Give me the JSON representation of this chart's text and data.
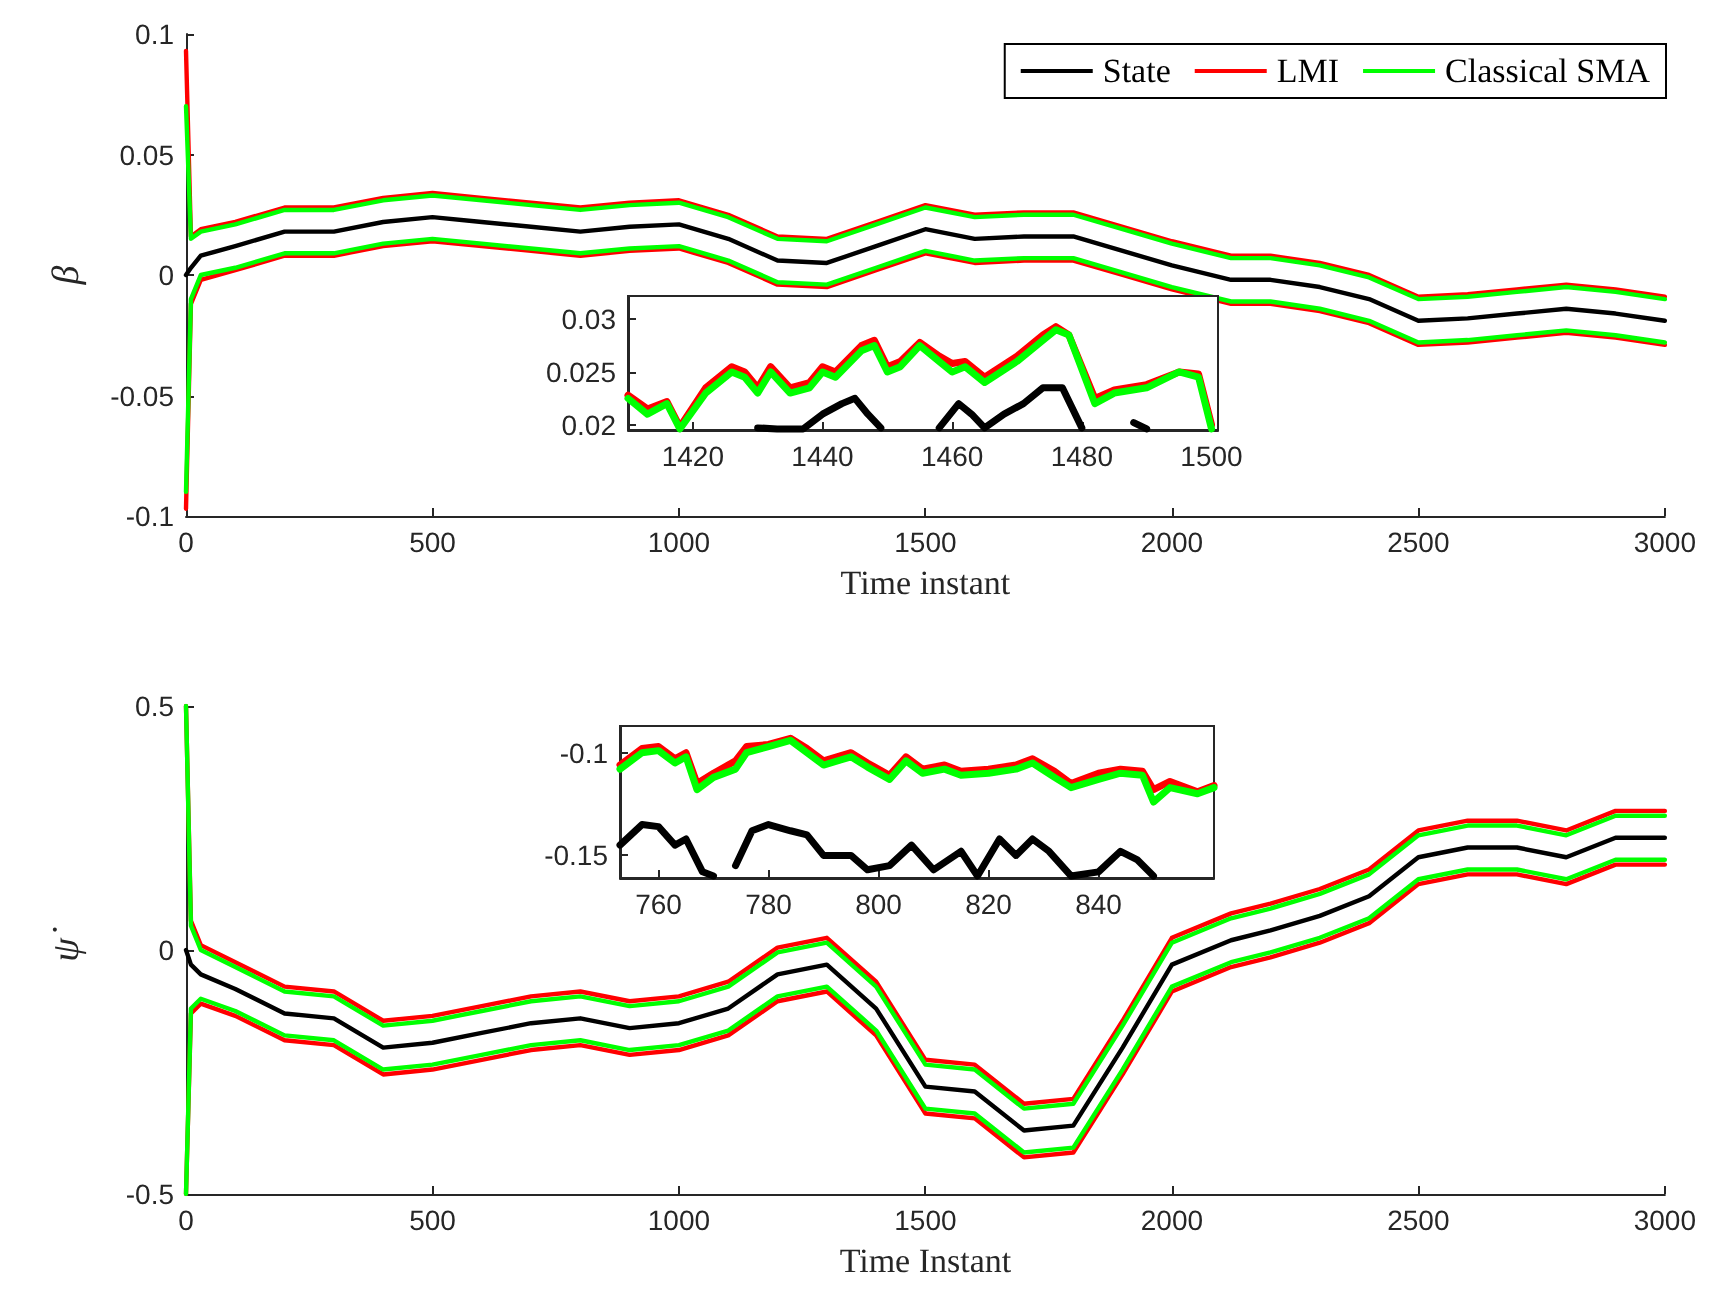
{
  "chart_data": [
    {
      "type": "line",
      "xlabel": "Time instant",
      "ylabel": "β",
      "xlim": [
        0,
        3000
      ],
      "ylim": [
        -0.1,
        0.1
      ],
      "xticks": [
        0,
        500,
        1000,
        1500,
        2000,
        2500,
        3000
      ],
      "yticks": [
        -0.1,
        -0.05,
        0,
        0.05,
        0.1
      ],
      "grid": false,
      "legend": "top right",
      "marker": "none",
      "line_style": "solid",
      "x": [
        0,
        10,
        30,
        100,
        200,
        300,
        400,
        500,
        600,
        700,
        800,
        900,
        1000,
        1100,
        1200,
        1300,
        1400,
        1500,
        1600,
        1700,
        1800,
        1900,
        2000,
        2120,
        2200,
        2300,
        2400,
        2500,
        2600,
        2700,
        2800,
        2900,
        3000
      ],
      "series": [
        {
          "name": "State",
          "color": "#000000",
          "values": [
            0,
            0.003,
            0.008,
            0.012,
            0.018,
            0.018,
            0.022,
            0.024,
            0.022,
            0.02,
            0.018,
            0.02,
            0.021,
            0.015,
            0.006,
            0.005,
            0.012,
            0.019,
            0.015,
            0.016,
            0.016,
            0.01,
            0.004,
            -0.002,
            -0.002,
            -0.005,
            -0.01,
            -0.019,
            -0.018,
            -0.016,
            -0.014,
            -0.016,
            -0.019
          ]
        },
        {
          "name": "LMI",
          "color": "#ff0000",
          "values": [
            0.093,
            0.016,
            0.019,
            0.022,
            0.028,
            0.028,
            0.032,
            0.034,
            0.032,
            0.03,
            0.028,
            0.03,
            0.031,
            0.025,
            0.016,
            0.015,
            0.022,
            0.029,
            0.025,
            0.026,
            0.026,
            0.02,
            0.014,
            0.008,
            0.008,
            0.005,
            0,
            -0.009,
            -0.008,
            -0.006,
            -0.004,
            -0.006,
            -0.009
          ]
        },
        {
          "color": "#ff0000",
          "values": [
            -0.097,
            -0.012,
            -0.002,
            0.002,
            0.008,
            0.008,
            0.012,
            0.014,
            0.012,
            0.01,
            0.008,
            0.01,
            0.011,
            0.005,
            -0.004,
            -0.005,
            0.002,
            0.009,
            0.005,
            0.006,
            0.006,
            0,
            -0.006,
            -0.012,
            -0.012,
            -0.015,
            -0.02,
            -0.029,
            -0.028,
            -0.026,
            -0.024,
            -0.026,
            -0.029
          ]
        },
        {
          "name": "Classical SMA",
          "color": "#00ff00",
          "values": [
            0.07,
            0.015,
            0.018,
            0.021,
            0.027,
            0.027,
            0.031,
            0.033,
            0.031,
            0.029,
            0.027,
            0.029,
            0.03,
            0.024,
            0.015,
            0.014,
            0.021,
            0.028,
            0.024,
            0.025,
            0.025,
            0.019,
            0.013,
            0.007,
            0.007,
            0.004,
            -0.001,
            -0.01,
            -0.009,
            -0.007,
            -0.005,
            -0.007,
            -0.01
          ]
        },
        {
          "color": "#00ff00",
          "values": [
            -0.09,
            -0.01,
            0,
            0.003,
            0.009,
            0.009,
            0.013,
            0.015,
            0.013,
            0.011,
            0.009,
            0.011,
            0.012,
            0.006,
            -0.003,
            -0.004,
            0.003,
            0.01,
            0.006,
            0.007,
            0.007,
            0.001,
            -0.005,
            -0.011,
            -0.011,
            -0.014,
            -0.019,
            -0.028,
            -0.027,
            -0.025,
            -0.023,
            -0.025,
            -0.028
          ]
        }
      ]
    },
    {
      "type": "line",
      "xlim": [
        1410,
        1501
      ],
      "ylim": [
        0.0195,
        0.0322
      ],
      "xticks": [
        1420,
        1440,
        1460,
        1480,
        1500
      ],
      "yticks": [
        0.02,
        0.025,
        0.03
      ],
      "grid": false,
      "legend": false,
      "marker": "none",
      "line_style": "solid",
      "series": [
        {
          "color": "#000000",
          "x": [
            1430,
            1433,
            1437,
            1440,
            1443,
            1445,
            1447,
            1449,
            1452,
            1458,
            1461,
            1463,
            1465,
            1468,
            1471,
            1474,
            1477,
            1480,
            1485,
            1488,
            1490
          ],
          "values": [
            0.0197,
            0.0196,
            0.0196,
            0.021,
            0.022,
            0.0225,
            0.021,
            0.0197,
            null,
            0.0197,
            0.022,
            0.021,
            0.0197,
            0.021,
            0.022,
            0.0235,
            0.0235,
            0.0197,
            null,
            0.0202,
            0.0196
          ]
        },
        {
          "color": "#ff0000",
          "x": [
            1410,
            1413,
            1416,
            1418,
            1422,
            1426,
            1428,
            1430,
            1432,
            1435,
            1438,
            1440,
            1442,
            1446,
            1448,
            1450,
            1452,
            1455,
            1458,
            1460,
            1462,
            1465,
            1470,
            1474,
            1476,
            1478,
            1482,
            1485,
            1490,
            1495,
            1498,
            1500
          ],
          "values": [
            0.0228,
            0.0215,
            0.0222,
            0.0198,
            0.0235,
            0.0255,
            0.025,
            0.0235,
            0.0255,
            0.0235,
            0.024,
            0.0255,
            0.025,
            0.0275,
            0.028,
            0.0255,
            0.026,
            0.0278,
            0.0265,
            0.0258,
            0.026,
            0.0245,
            0.0265,
            0.0285,
            0.0293,
            0.0285,
            0.0225,
            0.0233,
            0.0238,
            0.025,
            0.0248,
            0.02
          ]
        },
        {
          "color": "#00ff00",
          "x": [
            1410,
            1413,
            1416,
            1418,
            1422,
            1426,
            1428,
            1430,
            1432,
            1435,
            1438,
            1440,
            1442,
            1446,
            1448,
            1450,
            1452,
            1455,
            1458,
            1460,
            1462,
            1465,
            1470,
            1474,
            1476,
            1478,
            1482,
            1485,
            1490,
            1495,
            1498,
            1500
          ],
          "values": [
            0.0225,
            0.021,
            0.022,
            0.0196,
            0.023,
            0.025,
            0.0245,
            0.023,
            0.025,
            0.023,
            0.0235,
            0.025,
            0.0245,
            0.027,
            0.0275,
            0.025,
            0.0255,
            0.0275,
            0.026,
            0.025,
            0.0255,
            0.024,
            0.026,
            0.028,
            0.029,
            0.0285,
            0.022,
            0.023,
            0.0235,
            0.025,
            0.0245,
            0.0196
          ]
        }
      ]
    },
    {
      "type": "line",
      "xlabel": "Time Instant",
      "ylabel": "ψ̇",
      "xlim": [
        0,
        3000
      ],
      "ylim": [
        -0.5,
        0.5
      ],
      "xticks": [
        0,
        500,
        1000,
        1500,
        2000,
        2500,
        3000
      ],
      "yticks": [
        -0.5,
        0,
        0.5
      ],
      "grid": false,
      "legend": false,
      "marker": "none",
      "line_style": "solid",
      "x": [
        0,
        10,
        30,
        100,
        200,
        300,
        400,
        500,
        600,
        700,
        800,
        900,
        1000,
        1100,
        1200,
        1300,
        1400,
        1500,
        1600,
        1700,
        1800,
        1900,
        2000,
        2120,
        2200,
        2300,
        2400,
        2500,
        2600,
        2700,
        2800,
        2900,
        3000
      ],
      "series": [
        {
          "color": "#000000",
          "values": [
            0,
            -0.03,
            -0.05,
            -0.08,
            -0.13,
            -0.14,
            -0.2,
            -0.19,
            -0.17,
            -0.15,
            -0.14,
            -0.16,
            -0.15,
            -0.12,
            -0.05,
            -0.03,
            -0.12,
            -0.28,
            -0.29,
            -0.37,
            -0.36,
            -0.2,
            -0.03,
            0.02,
            0.04,
            0.07,
            0.11,
            0.19,
            0.21,
            0.21,
            0.19,
            0.23,
            0.23
          ]
        },
        {
          "color": "#ff0000",
          "values": [
            0.5,
            0.06,
            0.01,
            -0.025,
            -0.075,
            -0.085,
            -0.145,
            -0.135,
            -0.115,
            -0.095,
            -0.085,
            -0.105,
            -0.095,
            -0.065,
            0.005,
            0.025,
            -0.065,
            -0.225,
            -0.235,
            -0.315,
            -0.305,
            -0.145,
            0.025,
            0.075,
            0.095,
            0.125,
            0.165,
            0.245,
            0.265,
            0.265,
            0.245,
            0.285,
            0.285
          ]
        },
        {
          "color": "#ff0000",
          "values": [
            -0.5,
            -0.13,
            -0.11,
            -0.135,
            -0.185,
            -0.195,
            -0.255,
            -0.245,
            -0.225,
            -0.205,
            -0.195,
            -0.215,
            -0.205,
            -0.175,
            -0.105,
            -0.085,
            -0.175,
            -0.335,
            -0.345,
            -0.425,
            -0.415,
            -0.255,
            -0.085,
            -0.035,
            -0.015,
            0.015,
            0.055,
            0.135,
            0.155,
            0.155,
            0.135,
            0.175,
            0.175
          ]
        },
        {
          "color": "#00ff00",
          "values": [
            0.5,
            0.05,
            0,
            -0.035,
            -0.085,
            -0.095,
            -0.155,
            -0.145,
            -0.125,
            -0.105,
            -0.095,
            -0.115,
            -0.105,
            -0.075,
            -0.005,
            0.015,
            -0.075,
            -0.235,
            -0.245,
            -0.325,
            -0.315,
            -0.155,
            0.015,
            0.065,
            0.085,
            0.115,
            0.155,
            0.235,
            0.255,
            0.255,
            0.235,
            0.275,
            0.275
          ]
        },
        {
          "color": "#00ff00",
          "values": [
            -0.5,
            -0.12,
            -0.1,
            -0.125,
            -0.175,
            -0.185,
            -0.245,
            -0.235,
            -0.215,
            -0.195,
            -0.185,
            -0.205,
            -0.195,
            -0.165,
            -0.095,
            -0.075,
            -0.165,
            -0.325,
            -0.335,
            -0.415,
            -0.405,
            -0.245,
            -0.075,
            -0.025,
            -0.005,
            0.025,
            0.065,
            0.145,
            0.165,
            0.165,
            0.145,
            0.185,
            0.185
          ]
        }
      ]
    },
    {
      "type": "line",
      "xlim": [
        753,
        861
      ],
      "ylim": [
        -0.161,
        -0.087
      ],
      "xticks": [
        760,
        780,
        800,
        820,
        840
      ],
      "yticks": [
        -0.15,
        -0.1
      ],
      "grid": false,
      "legend": false,
      "marker": "none",
      "line_style": "solid",
      "series": [
        {
          "color": "#000000",
          "x": [
            753,
            757,
            760,
            763,
            765,
            768,
            770,
            772,
            774,
            777,
            780,
            784,
            787,
            790,
            795,
            798,
            802,
            806,
            810,
            815,
            818,
            822,
            825,
            828,
            831,
            835,
            840,
            844,
            847,
            850
          ],
          "values": [
            -0.145,
            -0.135,
            -0.136,
            -0.145,
            -0.142,
            -0.158,
            -0.16,
            null,
            -0.155,
            -0.138,
            -0.135,
            -0.138,
            -0.14,
            -0.15,
            -0.15,
            -0.157,
            -0.155,
            -0.145,
            -0.157,
            -0.148,
            -0.16,
            -0.142,
            -0.15,
            -0.142,
            -0.148,
            -0.16,
            -0.158,
            -0.148,
            -0.152,
            -0.16
          ]
        },
        {
          "color": "#ff0000",
          "x": [
            753,
            757,
            760,
            763,
            765,
            767,
            770,
            774,
            776,
            780,
            784,
            787,
            790,
            795,
            798,
            802,
            805,
            808,
            812,
            815,
            820,
            825,
            828,
            832,
            835,
            840,
            844,
            848,
            850,
            853,
            858,
            861
          ],
          "values": [
            -0.106,
            -0.098,
            -0.097,
            -0.103,
            -0.1,
            -0.115,
            -0.11,
            -0.104,
            -0.097,
            -0.096,
            -0.093,
            -0.098,
            -0.104,
            -0.1,
            -0.105,
            -0.111,
            -0.102,
            -0.108,
            -0.106,
            -0.109,
            -0.108,
            -0.106,
            -0.103,
            -0.109,
            -0.115,
            -0.11,
            -0.108,
            -0.109,
            -0.118,
            -0.114,
            -0.119,
            -0.116
          ]
        },
        {
          "color": "#00ff00",
          "x": [
            753,
            757,
            760,
            763,
            765,
            767,
            770,
            774,
            776,
            780,
            784,
            787,
            790,
            795,
            798,
            802,
            805,
            808,
            812,
            815,
            820,
            825,
            828,
            832,
            835,
            840,
            844,
            848,
            850,
            853,
            858,
            861
          ],
          "values": [
            -0.108,
            -0.1,
            -0.099,
            -0.105,
            -0.102,
            -0.118,
            -0.112,
            -0.108,
            -0.1,
            -0.097,
            -0.094,
            -0.1,
            -0.106,
            -0.102,
            -0.107,
            -0.113,
            -0.104,
            -0.11,
            -0.108,
            -0.111,
            -0.11,
            -0.108,
            -0.105,
            -0.112,
            -0.117,
            -0.113,
            -0.11,
            -0.111,
            -0.124,
            -0.117,
            -0.12,
            -0.117
          ]
        }
      ]
    }
  ]
}
